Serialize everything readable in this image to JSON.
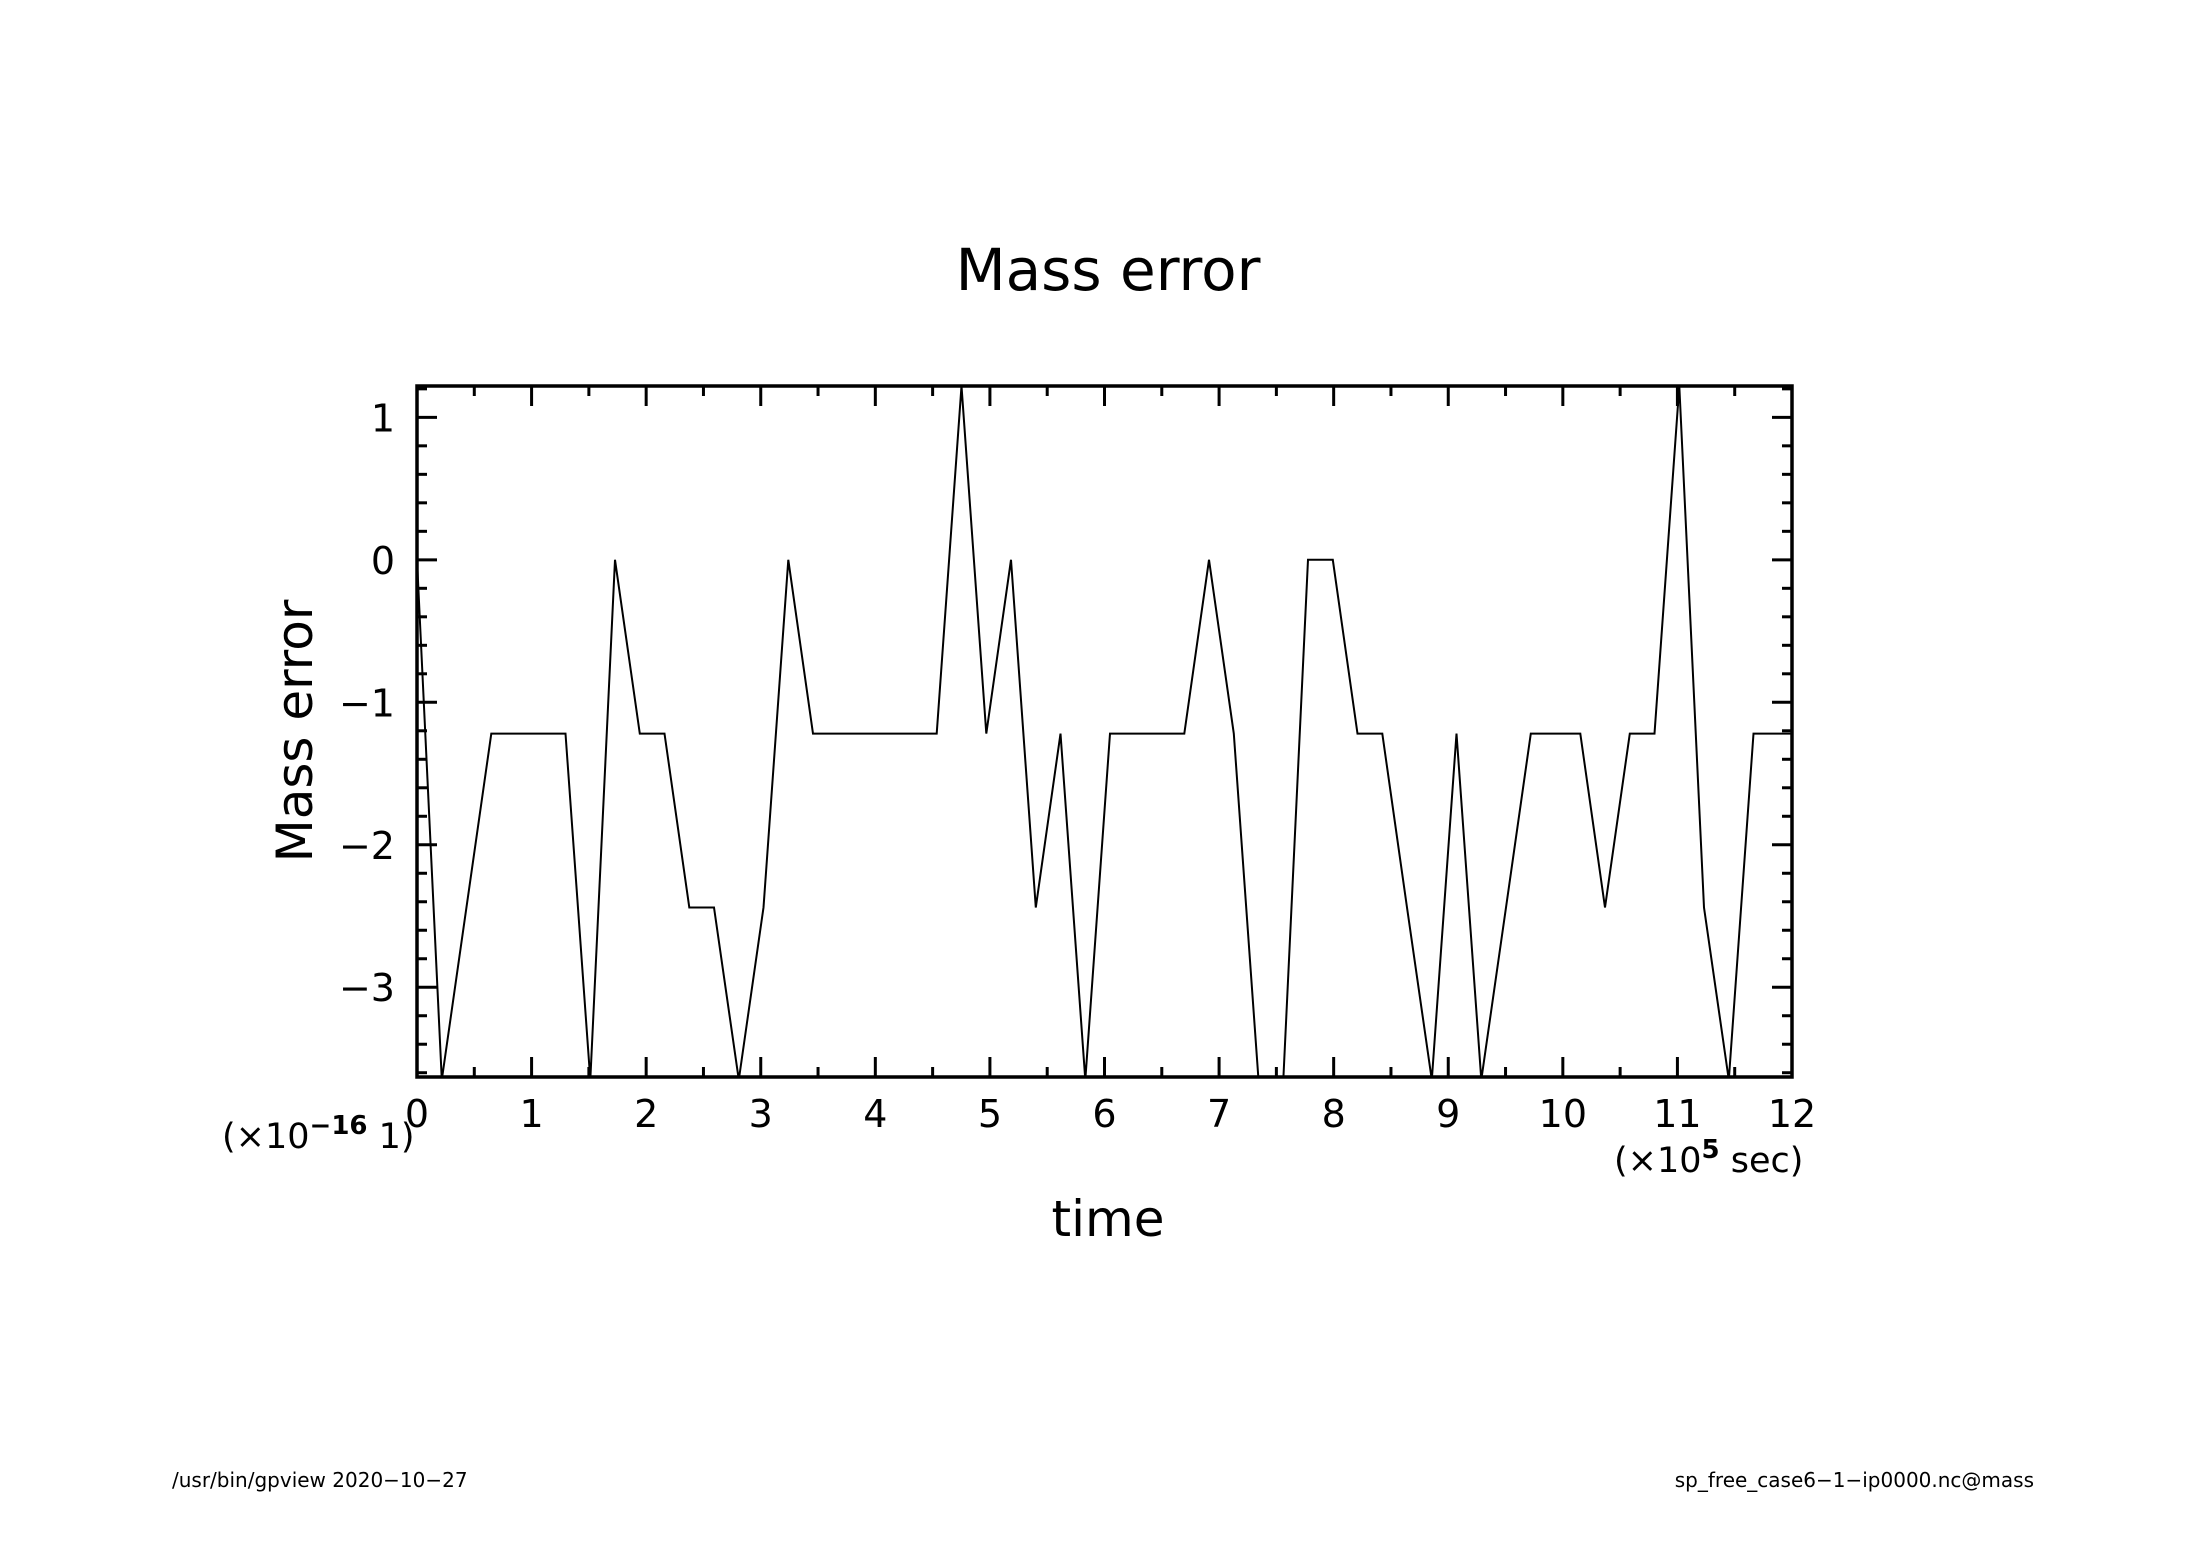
{
  "chart_data": {
    "type": "line",
    "title": "Mass error",
    "xlabel": "time",
    "ylabel": "Mass error",
    "x_scale_note_prefix": "(×10",
    "x_scale_note_exp": "5",
    "x_scale_note_suffix": " sec)",
    "y_scale_note_prefix": "(×10",
    "y_scale_note_exp": "−16",
    "y_scale_note_suffix": " 1)",
    "xlim": [
      0,
      12
    ],
    "ylim": [
      -3.63,
      1.22
    ],
    "grid": false,
    "legend": "none",
    "x_ticks": [
      0,
      1,
      2,
      3,
      4,
      5,
      6,
      7,
      8,
      9,
      10,
      11,
      12
    ],
    "x_tick_labels": [
      "0",
      "1",
      "2",
      "3",
      "4",
      "5",
      "6",
      "7",
      "8",
      "9",
      "10",
      "11",
      "12"
    ],
    "y_ticks": [
      -3,
      -2,
      -1,
      0,
      1
    ],
    "y_tick_labels": [
      "−3",
      "−2",
      "−1",
      "0",
      "1"
    ],
    "series": [
      {
        "x": [
          0.0,
          0.216,
          0.648,
          1.296,
          1.512,
          1.728,
          1.944,
          2.16,
          2.376,
          2.592,
          2.808,
          3.024,
          3.24,
          3.456,
          3.672,
          4.104,
          4.536,
          4.752,
          4.968,
          5.184,
          5.4,
          5.616,
          5.832,
          6.048,
          6.48,
          6.696,
          6.912,
          7.128,
          7.344,
          7.56,
          7.776,
          7.992,
          8.208,
          8.424,
          8.64,
          8.856,
          9.072,
          9.288,
          9.504,
          9.72,
          10.152,
          10.368,
          10.584,
          10.8,
          11.016,
          11.232,
          11.448,
          11.664,
          12.0
        ],
        "y": [
          0.0,
          -3.65,
          -1.22,
          -1.22,
          -3.65,
          0.0,
          -1.22,
          -1.22,
          -2.44,
          -2.44,
          -3.65,
          -2.44,
          0.0,
          -1.22,
          -1.22,
          -1.22,
          -1.22,
          1.22,
          -1.22,
          0.0,
          -2.44,
          -1.22,
          -3.65,
          -1.22,
          -1.22,
          -1.22,
          0.0,
          -1.22,
          -3.65,
          -3.65,
          0.0,
          0.0,
          -1.22,
          -1.22,
          -2.44,
          -3.65,
          -1.22,
          -3.65,
          -2.44,
          -1.22,
          -1.22,
          -2.44,
          -1.22,
          -1.22,
          1.22,
          -2.44,
          -3.65,
          -1.22,
          -1.22
        ]
      }
    ]
  },
  "footer": {
    "left": "/usr/bin/gpview   2020−10−27",
    "right": "sp_free_case6−1−ip0000.nc@mass"
  },
  "colors": {
    "line": "#000000",
    "frame": "#000000",
    "background": "#ffffff"
  }
}
